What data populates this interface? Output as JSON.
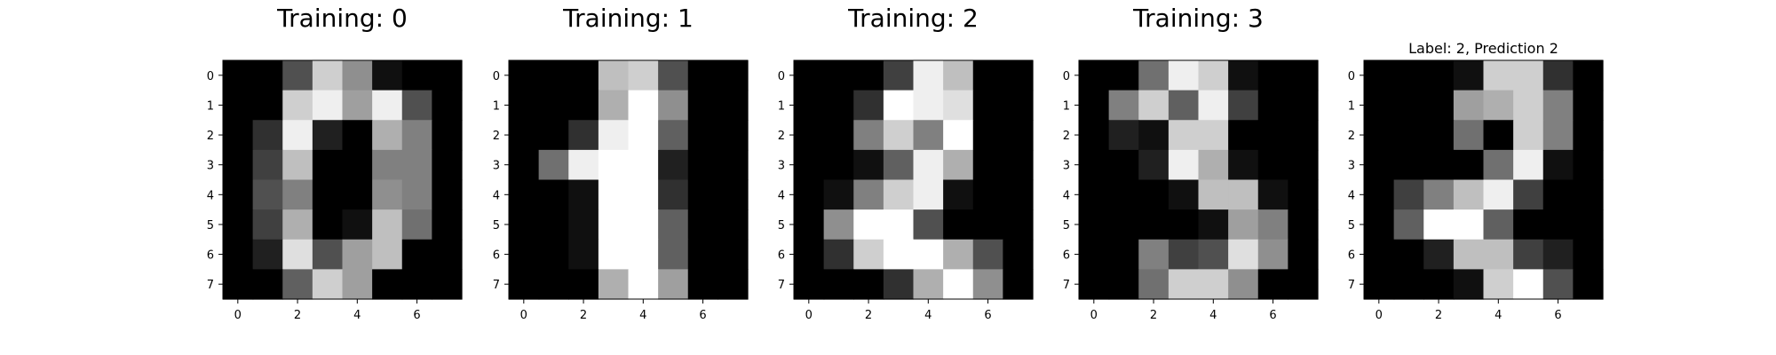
{
  "chart_data": [
    {
      "type": "heatmap",
      "title": "Training: 0",
      "x_ticks": [
        "0",
        "2",
        "4",
        "6"
      ],
      "y_ticks": [
        "0",
        "1",
        "2",
        "3",
        "4",
        "5",
        "6",
        "7"
      ],
      "colormap": "gray_r",
      "vmin": 0,
      "vmax": 16,
      "values": [
        [
          0,
          0,
          5,
          13,
          9,
          1,
          0,
          0
        ],
        [
          0,
          0,
          13,
          15,
          10,
          15,
          5,
          0
        ],
        [
          0,
          3,
          15,
          2,
          0,
          11,
          8,
          0
        ],
        [
          0,
          4,
          12,
          0,
          0,
          8,
          8,
          0
        ],
        [
          0,
          5,
          8,
          0,
          0,
          9,
          8,
          0
        ],
        [
          0,
          4,
          11,
          0,
          1,
          12,
          7,
          0
        ],
        [
          0,
          2,
          14,
          5,
          10,
          12,
          0,
          0
        ],
        [
          0,
          0,
          6,
          13,
          10,
          0,
          0,
          0
        ]
      ]
    },
    {
      "type": "heatmap",
      "title": "Training: 1",
      "x_ticks": [
        "0",
        "2",
        "4",
        "6"
      ],
      "y_ticks": [
        "0",
        "1",
        "2",
        "3",
        "4",
        "5",
        "6",
        "7"
      ],
      "colormap": "gray_r",
      "vmin": 0,
      "vmax": 16,
      "values": [
        [
          0,
          0,
          0,
          12,
          13,
          5,
          0,
          0
        ],
        [
          0,
          0,
          0,
          11,
          16,
          9,
          0,
          0
        ],
        [
          0,
          0,
          3,
          15,
          16,
          6,
          0,
          0
        ],
        [
          0,
          7,
          15,
          16,
          16,
          2,
          0,
          0
        ],
        [
          0,
          0,
          1,
          16,
          16,
          3,
          0,
          0
        ],
        [
          0,
          0,
          1,
          16,
          16,
          6,
          0,
          0
        ],
        [
          0,
          0,
          1,
          16,
          16,
          6,
          0,
          0
        ],
        [
          0,
          0,
          0,
          11,
          16,
          10,
          0,
          0
        ]
      ]
    },
    {
      "type": "heatmap",
      "title": "Training: 2",
      "x_ticks": [
        "0",
        "2",
        "4",
        "6"
      ],
      "y_ticks": [
        "0",
        "1",
        "2",
        "3",
        "4",
        "5",
        "6",
        "7"
      ],
      "colormap": "gray_r",
      "vmin": 0,
      "vmax": 16,
      "values": [
        [
          0,
          0,
          0,
          4,
          15,
          12,
          0,
          0
        ],
        [
          0,
          0,
          3,
          16,
          15,
          14,
          0,
          0
        ],
        [
          0,
          0,
          8,
          13,
          8,
          16,
          0,
          0
        ],
        [
          0,
          0,
          1,
          6,
          15,
          11,
          0,
          0
        ],
        [
          0,
          1,
          8,
          13,
          15,
          1,
          0,
          0
        ],
        [
          0,
          9,
          16,
          16,
          5,
          0,
          0,
          0
        ],
        [
          0,
          3,
          13,
          16,
          16,
          11,
          5,
          0
        ],
        [
          0,
          0,
          0,
          3,
          11,
          16,
          9,
          0
        ]
      ]
    },
    {
      "type": "heatmap",
      "title": "Training: 3",
      "x_ticks": [
        "0",
        "2",
        "4",
        "6"
      ],
      "y_ticks": [
        "0",
        "1",
        "2",
        "3",
        "4",
        "5",
        "6",
        "7"
      ],
      "colormap": "gray_r",
      "vmin": 0,
      "vmax": 16,
      "values": [
        [
          0,
          0,
          7,
          15,
          13,
          1,
          0,
          0
        ],
        [
          0,
          8,
          13,
          6,
          15,
          4,
          0,
          0
        ],
        [
          0,
          2,
          1,
          13,
          13,
          0,
          0,
          0
        ],
        [
          0,
          0,
          2,
          15,
          11,
          1,
          0,
          0
        ],
        [
          0,
          0,
          0,
          1,
          12,
          12,
          1,
          0
        ],
        [
          0,
          0,
          0,
          0,
          1,
          10,
          8,
          0
        ],
        [
          0,
          0,
          8,
          4,
          5,
          14,
          9,
          0
        ],
        [
          0,
          0,
          7,
          13,
          13,
          9,
          0,
          0
        ]
      ]
    },
    {
      "type": "heatmap",
      "title": "Label: 2, Prediction 2",
      "x_ticks": [
        "0",
        "2",
        "4",
        "6"
      ],
      "y_ticks": [
        "0",
        "1",
        "2",
        "3",
        "4",
        "5",
        "6",
        "7"
      ],
      "colormap": "gray_r",
      "vmin": 0,
      "vmax": 16,
      "values": [
        [
          0,
          0,
          0,
          1,
          13,
          13,
          3,
          0
        ],
        [
          0,
          0,
          0,
          10,
          11,
          13,
          8,
          0
        ],
        [
          0,
          0,
          0,
          7,
          0,
          13,
          8,
          0
        ],
        [
          0,
          0,
          0,
          0,
          7,
          15,
          1,
          0
        ],
        [
          0,
          4,
          8,
          12,
          15,
          4,
          0,
          0
        ],
        [
          0,
          6,
          16,
          16,
          6,
          0,
          0,
          0
        ],
        [
          0,
          0,
          2,
          12,
          12,
          4,
          2,
          0
        ],
        [
          0,
          0,
          0,
          1,
          13,
          16,
          5,
          0
        ]
      ]
    }
  ]
}
